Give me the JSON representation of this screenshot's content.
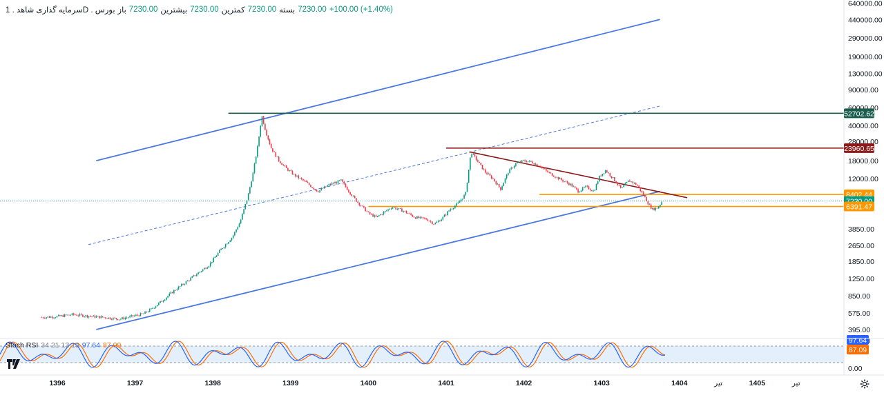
{
  "header": {
    "symbol": "سرمایه گذاری شاهد . 1D . بورس",
    "ohlc": [
      {
        "label": "باز",
        "value": "7230.00"
      },
      {
        "label": "بیشترین",
        "value": "7230.00"
      },
      {
        "label": "کمترین",
        "value": "7230.00"
      },
      {
        "label": "بسته",
        "value": "7230.00"
      }
    ],
    "change": "+100.00 (+1.40%)"
  },
  "stoch": {
    "name": "Stoch RSI",
    "params": "34 21 13 13",
    "k_value": "97.64",
    "d_value": "87.09",
    "axis_ticks": [
      "100.00",
      "0.00"
    ],
    "band_upper": 80,
    "band_lower": 20
  },
  "colors": {
    "up": "#089981",
    "down": "#f23645",
    "channel": "#4a78e0",
    "green_level": "#1b5e4f",
    "red_level": "#8b1a1a",
    "orange_level": "#ff9800",
    "stoch_k": "#2962ff",
    "stoch_d": "#ff6d00",
    "stoch_band": "#e3f0fb"
  },
  "icons": {
    "tv_logo": "tradingview-logo-icon",
    "settings": "gear-icon"
  },
  "chart_data": {
    "type": "candlestick",
    "scale": "log",
    "y_ticks": [
      "640000.00",
      "440000.00",
      "290000.00",
      "190000.00",
      "130000.00",
      "90000.00",
      "60000.00",
      "40000.00",
      "28000.00",
      "18000.00",
      "12000.00",
      "8402.44",
      "7230.00",
      "6391.47",
      "3850.00",
      "2650.00",
      "1850.00",
      "1250.00",
      "850.00",
      "575.00",
      "395.00"
    ],
    "x_ticks": [
      "1396",
      "1397",
      "1398",
      "1399",
      "1400",
      "1401",
      "1402",
      "1403",
      "1404",
      "تیر",
      "1405",
      "تیر"
    ],
    "price_labels": [
      {
        "value": "52702.62",
        "color": "#1b5e4f"
      },
      {
        "value": "23960.65",
        "color": "#8b1a1a"
      },
      {
        "value": "8402.44",
        "color": "#ff9800"
      },
      {
        "value": "7230.00",
        "color": "#089981"
      },
      {
        "value": "6391.47",
        "color": "#ff9800"
      }
    ],
    "last_price": 7230.0,
    "series": [
      {
        "points": [
          [
            "1395.8",
            520
          ],
          [
            "1396.0",
            530
          ],
          [
            "1396.2",
            555
          ],
          [
            "1396.4",
            535
          ],
          [
            "1396.6",
            520
          ],
          [
            "1396.8",
            500
          ],
          [
            "1397.0",
            540
          ],
          [
            "1397.1",
            560
          ],
          [
            "1397.2",
            620
          ],
          [
            "1397.35",
            760
          ],
          [
            "1397.5",
            950
          ],
          [
            "1397.65",
            1150
          ],
          [
            "1397.8",
            1400
          ],
          [
            "1397.95",
            1700
          ],
          [
            "1398.1",
            2400
          ],
          [
            "1398.25",
            3200
          ],
          [
            "1398.35",
            4500
          ],
          [
            "1398.45",
            8000
          ],
          [
            "1398.52",
            14000
          ],
          [
            "1398.58",
            26000
          ],
          [
            "1398.63",
            50000
          ],
          [
            "1398.68",
            35000
          ],
          [
            "1398.75",
            24000
          ],
          [
            "1398.85",
            18000
          ],
          [
            "1398.95",
            15000
          ],
          [
            "1399.05",
            13000
          ],
          [
            "1399.2",
            11000
          ],
          [
            "1399.35",
            9000
          ],
          [
            "1399.5",
            10500
          ],
          [
            "1399.65",
            11500
          ],
          [
            "1399.75",
            9000
          ],
          [
            "1399.85",
            7200
          ],
          [
            "1400.0",
            5500
          ],
          [
            "1400.1",
            5000
          ],
          [
            "1400.2",
            5600
          ],
          [
            "1400.3",
            6300
          ],
          [
            "1400.45",
            5800
          ],
          [
            "1400.6",
            5000
          ],
          [
            "1400.75",
            4800
          ],
          [
            "1400.85",
            4300
          ],
          [
            "1400.95",
            4900
          ],
          [
            "1401.05",
            6000
          ],
          [
            "1401.15",
            6800
          ],
          [
            "1401.25",
            8500
          ],
          [
            "1401.32",
            22000
          ],
          [
            "1401.4",
            18000
          ],
          [
            "1401.5",
            14000
          ],
          [
            "1401.6",
            12000
          ],
          [
            "1401.7",
            9500
          ],
          [
            "1401.8",
            14000
          ],
          [
            "1401.9",
            17000
          ],
          [
            "1402.0",
            18000
          ],
          [
            "1402.1",
            17500
          ],
          [
            "1402.2",
            16000
          ],
          [
            "1402.3",
            14000
          ],
          [
            "1402.45",
            12000
          ],
          [
            "1402.6",
            10500
          ],
          [
            "1402.7",
            9000
          ],
          [
            "1402.8",
            10000
          ],
          [
            "1402.9",
            9000
          ],
          [
            "1402.97",
            12500
          ],
          [
            "1403.05",
            14500
          ],
          [
            "1403.15",
            12000
          ],
          [
            "1403.25",
            9500
          ],
          [
            "1403.35",
            11500
          ],
          [
            "1403.45",
            10500
          ],
          [
            "1403.55",
            8000
          ],
          [
            "1403.6",
            6800
          ],
          [
            "1403.65",
            6000
          ],
          [
            "1403.72",
            6200
          ],
          [
            "1403.78",
            7230
          ]
        ]
      }
    ],
    "annotations": [
      {
        "type": "channel-upper",
        "from": [
          "1396.5",
          18000
        ],
        "to": [
          "1403.75",
          440000
        ]
      },
      {
        "type": "channel-mid",
        "from": [
          "1396.4",
          2700
        ],
        "to": [
          "1403.75",
          62000
        ]
      },
      {
        "type": "channel-lower",
        "from": [
          "1396.5",
          395
        ],
        "to": [
          "1403.75",
          9000
        ]
      },
      {
        "type": "hline",
        "value": 52702.62,
        "from": "1398.2"
      },
      {
        "type": "hline",
        "value": 23960.65,
        "from": "1401.0"
      },
      {
        "type": "hline",
        "value": 8402.44,
        "from": "1402.2"
      },
      {
        "type": "hline",
        "value": 6391.47,
        "from": "1400.0"
      },
      {
        "type": "trendline",
        "from": [
          "1401.3",
          22000
        ],
        "to": [
          "1404.1",
          7800
        ]
      }
    ]
  }
}
